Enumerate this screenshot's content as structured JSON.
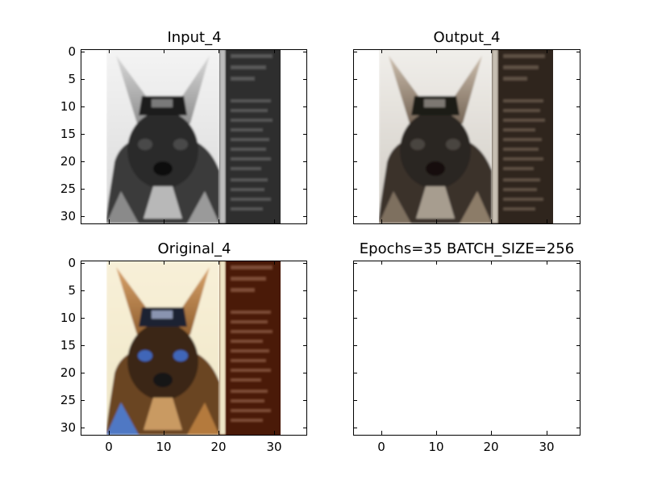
{
  "figure": {
    "background": "#ffffff"
  },
  "chart_data": [
    {
      "type": "image",
      "title": "Input_4",
      "description_style": "grayscale",
      "x_ticks": [
        "0",
        "10",
        "20",
        "30"
      ],
      "y_ticks": [
        "0",
        "5",
        "10",
        "15",
        "20",
        "25",
        "30"
      ],
      "xlim": [
        -5,
        36
      ],
      "ylim": [
        31.5,
        -0.5
      ],
      "image_extent": [
        -0.5,
        31.5
      ],
      "show_x_tick_labels": false,
      "show_y_tick_labels": true
    },
    {
      "type": "image",
      "title": "Output_4",
      "description_style": "desaturated color",
      "x_ticks": [
        "0",
        "10",
        "20",
        "30"
      ],
      "y_ticks": [
        "0",
        "5",
        "10",
        "15",
        "20",
        "25",
        "30"
      ],
      "xlim": [
        -5,
        36
      ],
      "ylim": [
        31.5,
        -0.5
      ],
      "image_extent": [
        -0.5,
        31.5
      ],
      "show_x_tick_labels": false,
      "show_y_tick_labels": false
    },
    {
      "type": "image",
      "title": "Original_4",
      "description_style": "color",
      "x_ticks": [
        "0",
        "10",
        "20",
        "30"
      ],
      "y_ticks": [
        "0",
        "5",
        "10",
        "15",
        "20",
        "25",
        "30"
      ],
      "xlim": [
        -5,
        36
      ],
      "ylim": [
        31.5,
        -0.5
      ],
      "image_extent": [
        -0.5,
        31.5
      ],
      "show_x_tick_labels": true,
      "show_y_tick_labels": true
    },
    {
      "type": "empty",
      "title": "Epochs=35 BATCH_SIZE=256",
      "x_ticks": [
        "0",
        "10",
        "20",
        "30"
      ],
      "y_ticks": [
        "0",
        "5",
        "10",
        "15",
        "20",
        "25",
        "30"
      ],
      "xlim": [
        -5,
        36
      ],
      "ylim": [
        31.5,
        -0.5
      ],
      "show_x_tick_labels": true,
      "show_y_tick_labels": false
    }
  ]
}
